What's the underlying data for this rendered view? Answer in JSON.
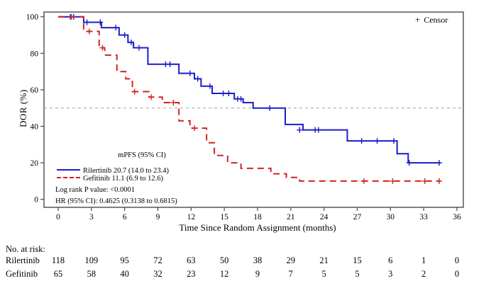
{
  "chart_data": {
    "type": "line",
    "subtype": "kaplan-meier-step",
    "title": "",
    "xlabel": "Time Since Random Assignment (months)",
    "ylabel": "DOR (%)",
    "xlim": [
      0,
      36
    ],
    "ylim": [
      0,
      100
    ],
    "xticks": [
      0,
      3,
      6,
      9,
      12,
      15,
      18,
      21,
      24,
      27,
      30,
      33,
      36
    ],
    "yticks": [
      0,
      20,
      40,
      60,
      80,
      100
    ],
    "grid": false,
    "reference_line_y": 50,
    "censor_legend": "Censor",
    "colors": {
      "rilertinib": "#1c1ccd",
      "gefitinib": "#d42222",
      "reference": "#a0a0a0",
      "axis": "#4a4a4a"
    },
    "series": [
      {
        "name": "Rilertinib",
        "color": "#1c1ccd",
        "line_style": "solid",
        "steps": [
          [
            0,
            100
          ],
          [
            2.3,
            97
          ],
          [
            3.9,
            94
          ],
          [
            5.5,
            90
          ],
          [
            6.3,
            86
          ],
          [
            6.8,
            83
          ],
          [
            8.1,
            74
          ],
          [
            10.9,
            69
          ],
          [
            12.3,
            66
          ],
          [
            12.9,
            62
          ],
          [
            13.9,
            58
          ],
          [
            15.9,
            55
          ],
          [
            16.7,
            53
          ],
          [
            17.6,
            50
          ],
          [
            20.5,
            41
          ],
          [
            22.1,
            38
          ],
          [
            26.1,
            32
          ],
          [
            30.6,
            25
          ],
          [
            31.6,
            20
          ]
        ],
        "end_time": 34.5,
        "censors": [
          [
            1.1,
            100
          ],
          [
            1.4,
            100
          ],
          [
            2.6,
            97
          ],
          [
            3.8,
            97
          ],
          [
            5.2,
            94
          ],
          [
            6.0,
            90
          ],
          [
            6.6,
            86
          ],
          [
            7.3,
            83
          ],
          [
            9.7,
            74
          ],
          [
            10.1,
            74
          ],
          [
            11.9,
            69
          ],
          [
            12.6,
            66
          ],
          [
            13.7,
            62
          ],
          [
            14.9,
            58
          ],
          [
            15.4,
            58
          ],
          [
            16.2,
            55
          ],
          [
            16.5,
            55
          ],
          [
            19.1,
            50
          ],
          [
            21.8,
            38
          ],
          [
            23.2,
            38
          ],
          [
            23.5,
            38
          ],
          [
            27.4,
            32
          ],
          [
            28.8,
            32
          ],
          [
            30.3,
            32
          ],
          [
            31.7,
            20
          ],
          [
            34.4,
            20
          ]
        ]
      },
      {
        "name": "Gefitinib",
        "color": "#d42222",
        "line_style": "dashed",
        "steps": [
          [
            0,
            100
          ],
          [
            2.3,
            92
          ],
          [
            3.7,
            83
          ],
          [
            4.2,
            79
          ],
          [
            5.3,
            70
          ],
          [
            6.1,
            66
          ],
          [
            6.7,
            59
          ],
          [
            8.2,
            56
          ],
          [
            9.4,
            53
          ],
          [
            10.9,
            43
          ],
          [
            11.9,
            39
          ],
          [
            13.4,
            31
          ],
          [
            14.1,
            24
          ],
          [
            15.3,
            20
          ],
          [
            16.5,
            17
          ],
          [
            19.2,
            14
          ],
          [
            20.6,
            12
          ],
          [
            21.8,
            10
          ]
        ],
        "end_time": 34.5,
        "censors": [
          [
            1.2,
            100
          ],
          [
            2.8,
            92
          ],
          [
            4.0,
            83
          ],
          [
            6.9,
            59
          ],
          [
            8.4,
            56
          ],
          [
            10.4,
            53
          ],
          [
            12.3,
            39
          ],
          [
            27.6,
            10
          ],
          [
            30.2,
            10
          ],
          [
            33.1,
            10
          ],
          [
            34.4,
            10
          ]
        ]
      }
    ],
    "legend": {
      "header": "mPFS (95% CI)",
      "entries": [
        {
          "series": "Rilertinib",
          "label": "Rilertinib 20.7 (14.0 to 23.4)"
        },
        {
          "series": "Gefitinib",
          "label": "Gefitinib 11.1 (6.9 to 12.6)"
        }
      ],
      "position": "inside-lower-left"
    },
    "annotations": [
      "Log rank P value: <0.0001",
      "HR (95% CI): 0.4625 (0.3138 to 0.6815)"
    ]
  },
  "risk_table": {
    "title": "No. at risk:",
    "times": [
      0,
      3,
      6,
      9,
      12,
      15,
      18,
      21,
      24,
      27,
      30,
      33,
      36
    ],
    "rows": [
      {
        "label": "Rilertinib",
        "values": [
          118,
          109,
          95,
          72,
          63,
          50,
          38,
          29,
          21,
          15,
          6,
          1,
          0
        ]
      },
      {
        "label": "Gefitinib",
        "values": [
          65,
          58,
          40,
          32,
          23,
          12,
          9,
          7,
          5,
          5,
          3,
          2,
          0
        ]
      }
    ]
  }
}
